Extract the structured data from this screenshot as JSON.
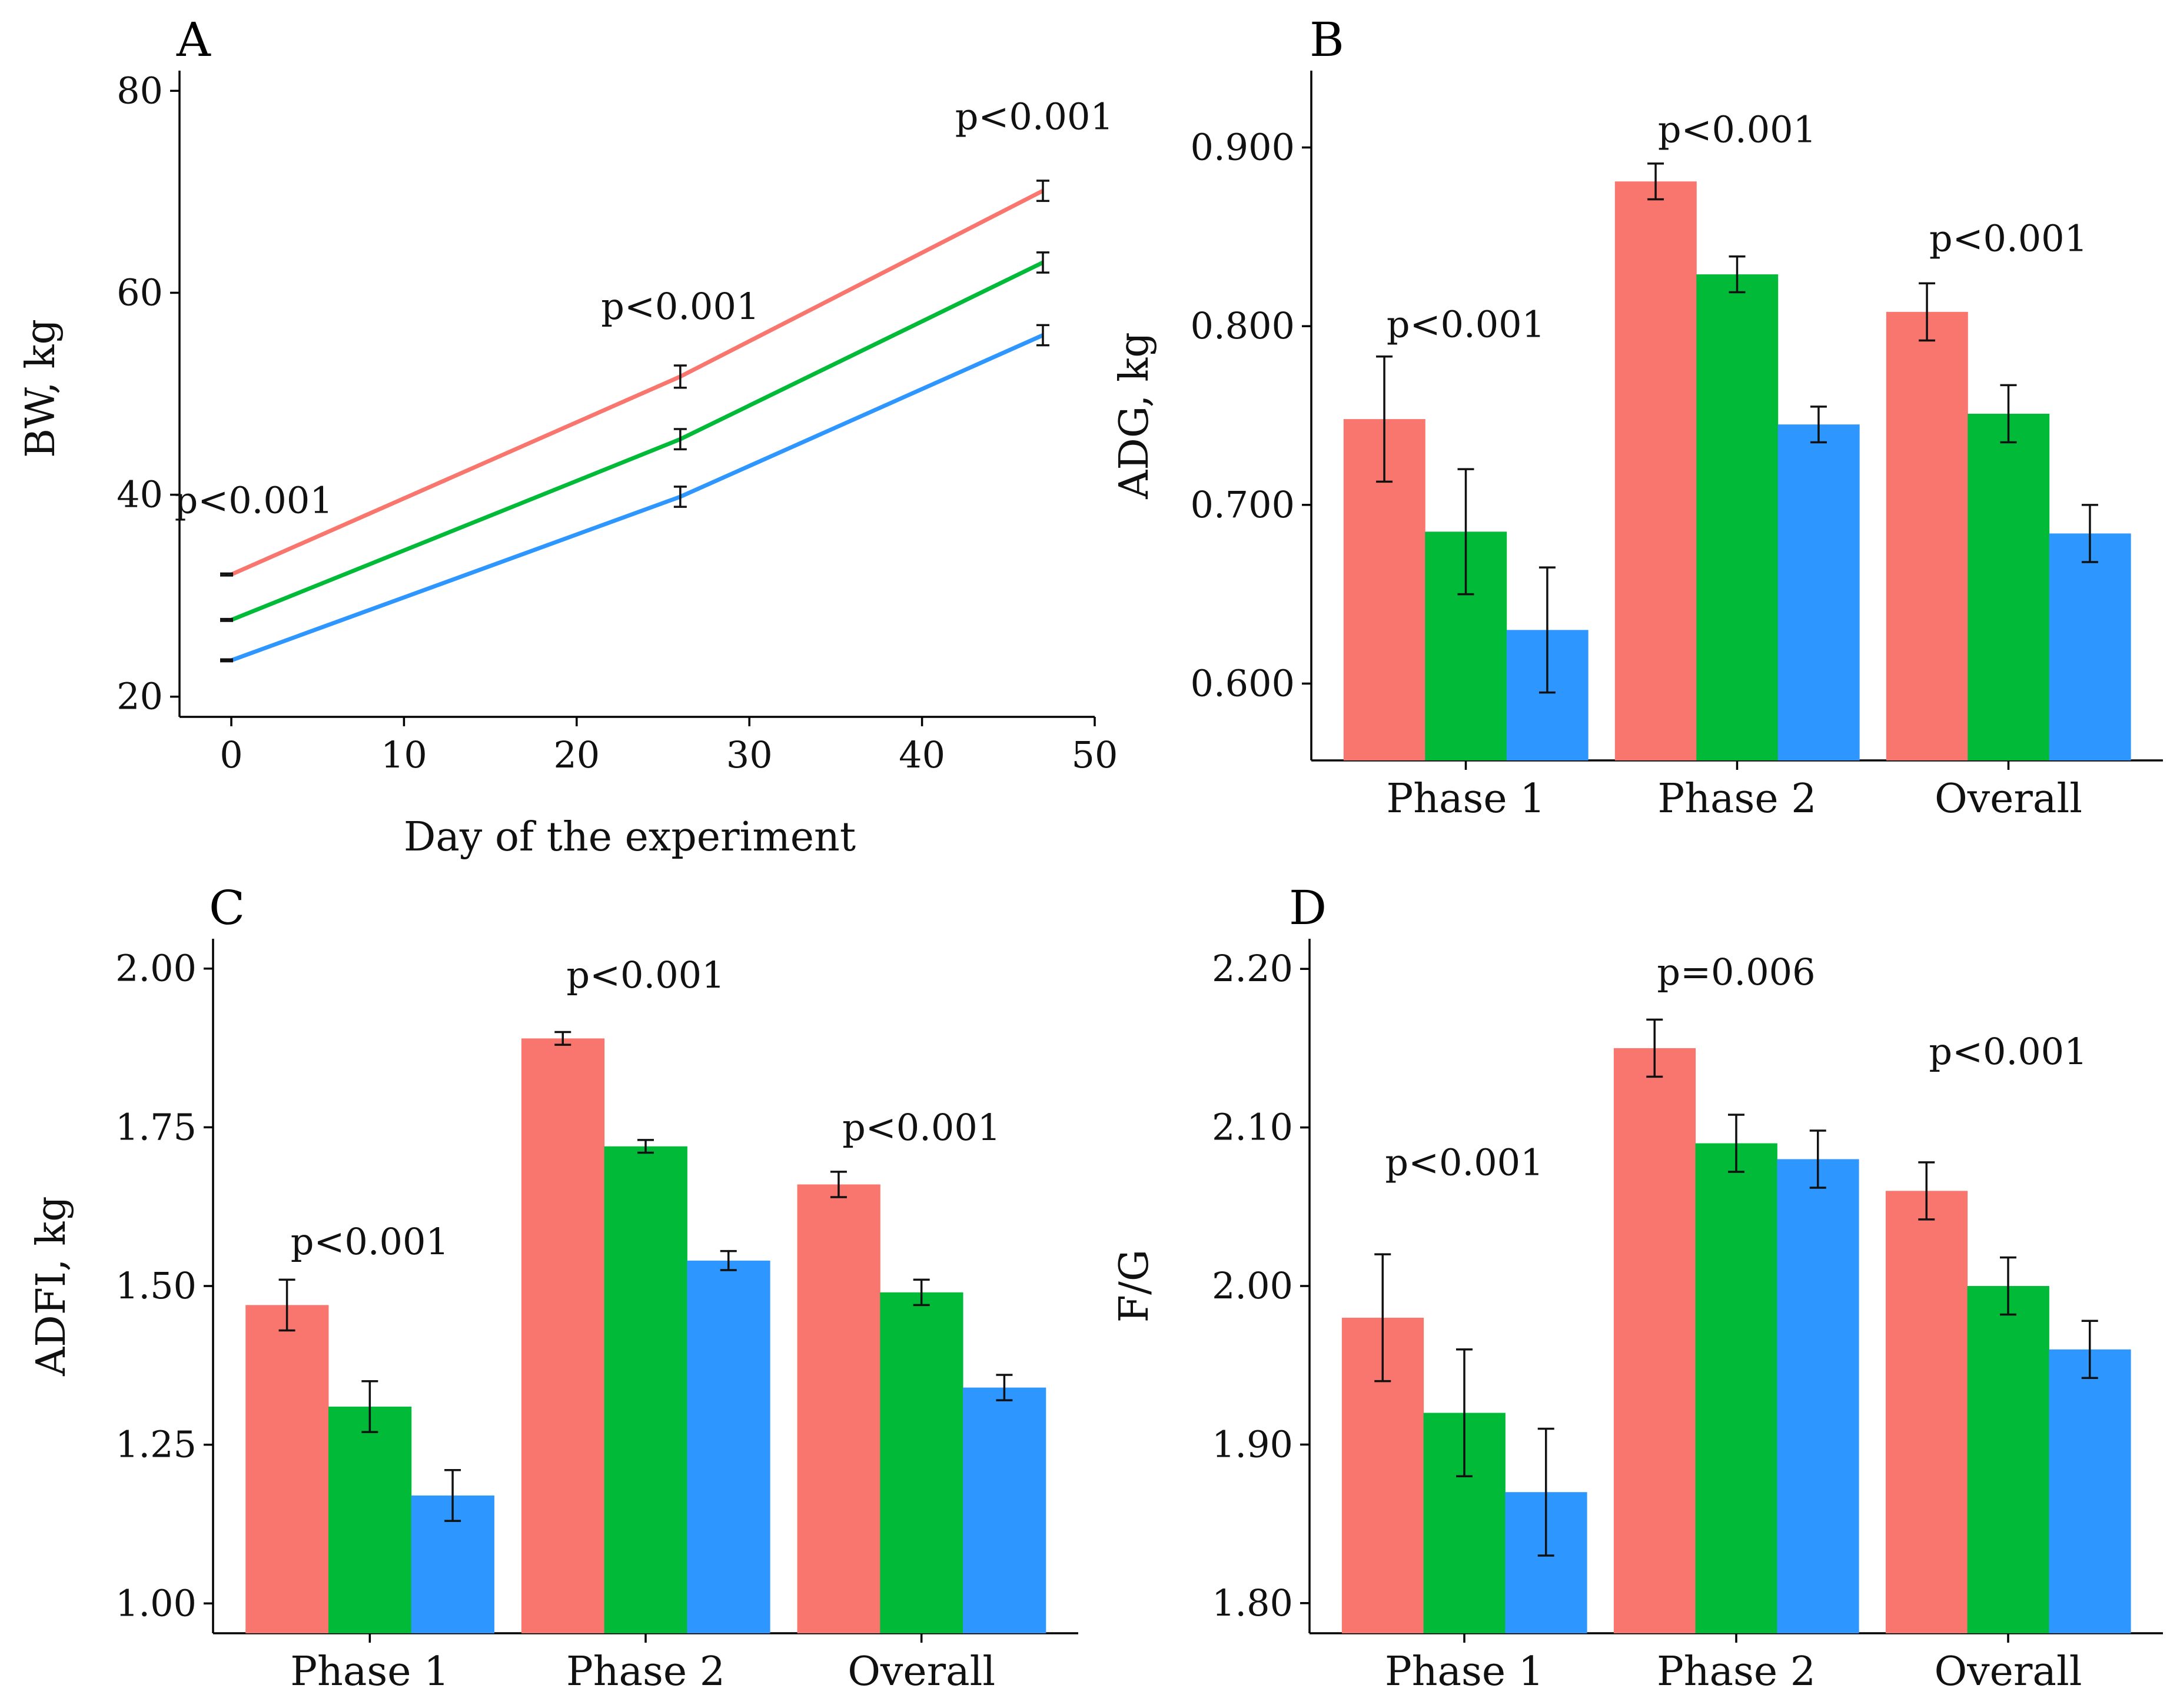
{
  "colors": {
    "red": "#F8766D",
    "green": "#00BA38",
    "blue": "#2E96FF"
  },
  "chart_data": [
    {
      "panel": "A",
      "type": "line",
      "xlabel": "Day of the experiment",
      "ylabel": "BW, kg",
      "xlim": [
        -3,
        50
      ],
      "ylim": [
        18,
        82
      ],
      "xticks": [
        0,
        10,
        20,
        30,
        40,
        50
      ],
      "yticks": [
        20,
        40,
        60,
        80
      ],
      "series": [
        {
          "name": "red",
          "color": "#F8766D",
          "x": [
            0,
            26,
            47
          ],
          "y": [
            32.1,
            51.7,
            70.1
          ],
          "err": [
            0.1,
            1.1,
            1.0
          ]
        },
        {
          "name": "green",
          "color": "#00BA38",
          "x": [
            0,
            26,
            47
          ],
          "y": [
            27.6,
            45.5,
            63.0
          ],
          "err": [
            0.1,
            1.0,
            1.0
          ]
        },
        {
          "name": "blue",
          "color": "#2E96FF",
          "x": [
            0,
            26,
            47
          ],
          "y": [
            23.6,
            39.8,
            55.8
          ],
          "err": [
            0.1,
            1.0,
            1.0
          ]
        }
      ],
      "annotations": [
        {
          "text": "p<0.001",
          "x": 1.3,
          "y": 38.2
        },
        {
          "text": "p<0.001",
          "x": 26.0,
          "y": 57.4
        },
        {
          "text": "p<0.001",
          "x": 46.5,
          "y": 76.2
        }
      ]
    },
    {
      "panel": "B",
      "type": "bar",
      "xlabel": "",
      "ylabel": "ADG, kg",
      "categories": [
        "Phase 1",
        "Phase 2",
        "Overall"
      ],
      "ylim": [
        0.557,
        0.943
      ],
      "yticks": [
        0.6,
        0.7,
        0.8,
        0.9
      ],
      "ytick_labels": [
        "0.600",
        "0.700",
        "0.800",
        "0.900"
      ],
      "series": [
        {
          "name": "red",
          "values": [
            0.748,
            0.881,
            0.808
          ],
          "err": [
            0.035,
            0.01,
            0.016
          ]
        },
        {
          "name": "green",
          "values": [
            0.685,
            0.829,
            0.751
          ],
          "err": [
            0.035,
            0.01,
            0.016
          ]
        },
        {
          "name": "blue",
          "values": [
            0.63,
            0.745,
            0.684
          ],
          "err": [
            0.035,
            0.01,
            0.016
          ]
        }
      ],
      "annotations": [
        {
          "text": "p<0.001",
          "category": 0,
          "y": 0.794
        },
        {
          "text": "p<0.001",
          "category": 1,
          "y": 0.903
        },
        {
          "text": "p<0.001",
          "category": 2,
          "y": 0.842
        }
      ]
    },
    {
      "panel": "C",
      "type": "bar",
      "xlabel": "",
      "ylabel": "ADFI, kg",
      "categories": [
        "Phase 1",
        "Phase 2",
        "Overall"
      ],
      "ylim": [
        0.953,
        2.047
      ],
      "yticks": [
        1.0,
        1.25,
        1.5,
        1.75,
        2.0
      ],
      "ytick_labels": [
        "1.00",
        "1.25",
        "1.50",
        "1.75",
        "2.00"
      ],
      "series": [
        {
          "name": "red",
          "values": [
            1.47,
            1.89,
            1.66
          ],
          "err": [
            0.04,
            0.01,
            0.02
          ]
        },
        {
          "name": "green",
          "values": [
            1.31,
            1.72,
            1.49
          ],
          "err": [
            0.04,
            0.01,
            0.02
          ]
        },
        {
          "name": "blue",
          "values": [
            1.17,
            1.54,
            1.34
          ],
          "err": [
            0.04,
            0.015,
            0.02
          ]
        }
      ],
      "annotations": [
        {
          "text": "p<0.001",
          "category": 0,
          "y": 1.55
        },
        {
          "text": "p<0.001",
          "category": 1,
          "y": 1.97
        },
        {
          "text": "p<0.001",
          "category": 2,
          "y": 1.73
        }
      ]
    },
    {
      "panel": "D",
      "type": "bar",
      "xlabel": "",
      "ylabel": "F/G",
      "categories": [
        "Phase 1",
        "Phase 2",
        "Overall"
      ],
      "ylim": [
        1.781,
        2.219
      ],
      "yticks": [
        1.8,
        1.9,
        2.0,
        2.1,
        2.2
      ],
      "ytick_labels": [
        "1.80",
        "1.90",
        "2.00",
        "2.10",
        "2.20"
      ],
      "series": [
        {
          "name": "red",
          "values": [
            1.98,
            2.15,
            2.06
          ],
          "err": [
            0.04,
            0.018,
            0.018
          ]
        },
        {
          "name": "green",
          "values": [
            1.92,
            2.09,
            2.0
          ],
          "err": [
            0.04,
            0.018,
            0.018
          ]
        },
        {
          "name": "blue",
          "values": [
            1.87,
            2.08,
            1.96
          ],
          "err": [
            0.04,
            0.018,
            0.018
          ]
        }
      ],
      "annotations": [
        {
          "text": "p<0.001",
          "category": 0,
          "y": 2.07
        },
        {
          "text": "p=0.006",
          "category": 1,
          "y": 2.19
        },
        {
          "text": "p<0.001",
          "category": 2,
          "y": 2.14
        }
      ]
    }
  ]
}
